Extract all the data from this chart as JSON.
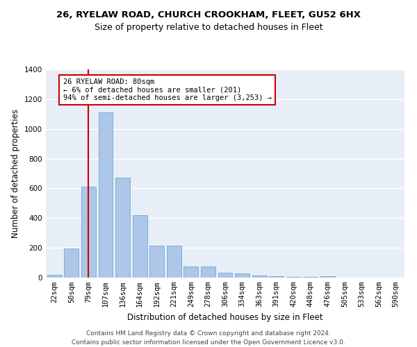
{
  "title_line1": "26, RYELAW ROAD, CHURCH CROOKHAM, FLEET, GU52 6HX",
  "title_line2": "Size of property relative to detached houses in Fleet",
  "xlabel": "Distribution of detached houses by size in Fleet",
  "ylabel": "Number of detached properties",
  "categories": [
    "22sqm",
    "50sqm",
    "79sqm",
    "107sqm",
    "136sqm",
    "164sqm",
    "192sqm",
    "221sqm",
    "249sqm",
    "278sqm",
    "306sqm",
    "334sqm",
    "363sqm",
    "391sqm",
    "420sqm",
    "448sqm",
    "476sqm",
    "505sqm",
    "533sqm",
    "562sqm",
    "590sqm"
  ],
  "values": [
    20,
    195,
    610,
    1110,
    670,
    420,
    215,
    215,
    75,
    75,
    35,
    30,
    15,
    10,
    5,
    5,
    10,
    0,
    0,
    0,
    0
  ],
  "bar_color": "#aec6e8",
  "bar_edge_color": "#6fa8d5",
  "vline_color": "#cc0000",
  "vline_index": 2.0,
  "annotation_text": "26 RYELAW ROAD: 80sqm\n← 6% of detached houses are smaller (201)\n94% of semi-detached houses are larger (3,253) →",
  "annotation_box_color": "#ffffff",
  "annotation_box_edge": "#cc0000",
  "ylim": [
    0,
    1400
  ],
  "yticks": [
    0,
    200,
    400,
    600,
    800,
    1000,
    1200,
    1400
  ],
  "background_color": "#e8eef7",
  "grid_color": "#ffffff",
  "footer": "Contains HM Land Registry data © Crown copyright and database right 2024.\nContains public sector information licensed under the Open Government Licence v3.0.",
  "fig_width": 6.0,
  "fig_height": 5.0,
  "title1_fontsize": 9.5,
  "title2_fontsize": 9,
  "ylabel_fontsize": 8.5,
  "xlabel_fontsize": 8.5,
  "tick_fontsize": 7.5,
  "annotation_fontsize": 7.5,
  "footer_fontsize": 6.5
}
